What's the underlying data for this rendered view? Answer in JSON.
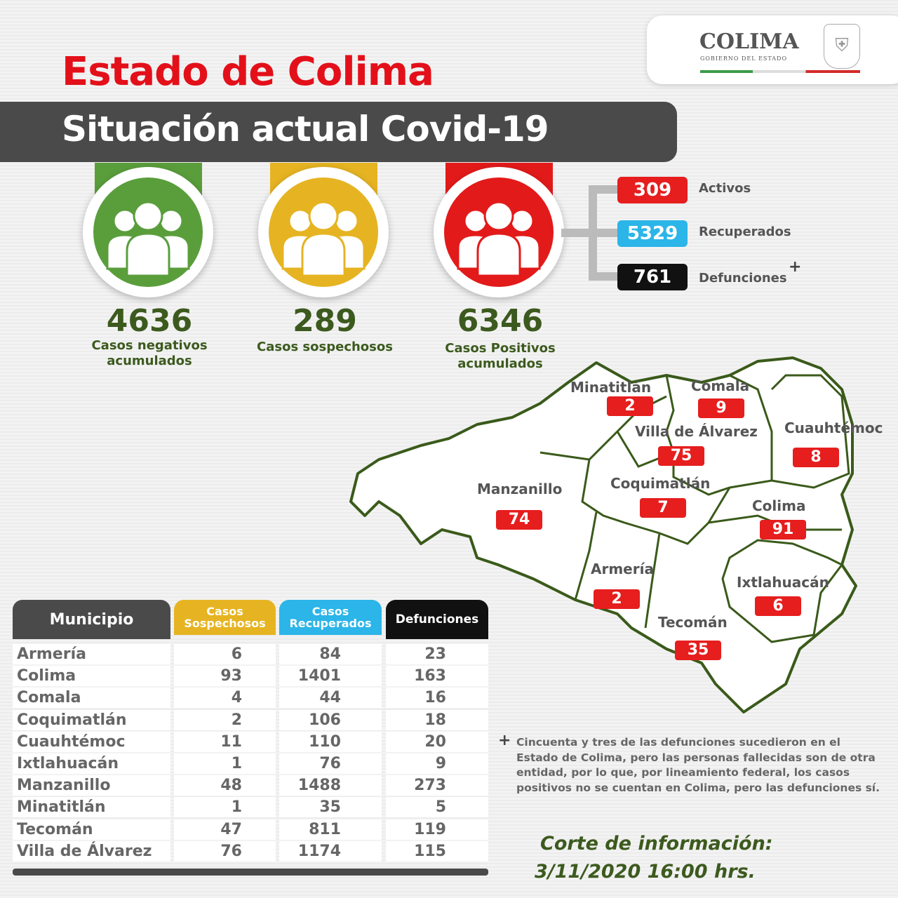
{
  "header": {
    "title": "Estado de Colima",
    "subtitle": "Situación actual Covid-19"
  },
  "logo": {
    "name": "COLIMA",
    "subtitle": "GOBIERNO DEL ESTADO"
  },
  "summary": [
    {
      "value": "4636",
      "label": "Casos negativos acumulados",
      "color": "#5a9e3c"
    },
    {
      "value": "289",
      "label": "Casos sospechosos",
      "color": "#e6b422"
    },
    {
      "value": "6346",
      "label": "Casos Positivos acumulados",
      "color": "#e31a1a"
    }
  ],
  "positive_breakdown": [
    {
      "value": "309",
      "label": "Activos",
      "color": "#e61e1e"
    },
    {
      "value": "5329",
      "label": "Recuperados",
      "color": "#2bb5e8"
    },
    {
      "value": "761",
      "label": "Defunciones",
      "color": "#111111",
      "marker": "+"
    }
  ],
  "map": [
    {
      "name": "Minatitlán",
      "value": "2"
    },
    {
      "name": "Comala",
      "value": "9"
    },
    {
      "name": "Villa de Álvarez",
      "value": "75"
    },
    {
      "name": "Cuauhtémoc",
      "value": "8"
    },
    {
      "name": "Manzanillo",
      "value": "74"
    },
    {
      "name": "Coquimatlán",
      "value": "7"
    },
    {
      "name": "Colima",
      "value": "91"
    },
    {
      "name": "Armería",
      "value": "2"
    },
    {
      "name": "Ixtlahuacán",
      "value": "6"
    },
    {
      "name": "Tecomán",
      "value": "35"
    }
  ],
  "table": {
    "headers": [
      "Municipio",
      "Casos Sospechosos",
      "Casos Recuperados",
      "Defunciones"
    ],
    "header_colors": [
      "#4a4a4a",
      "#e6b422",
      "#2bb5e8",
      "#111111"
    ],
    "rows": [
      [
        "Armería",
        "6",
        "84",
        "23"
      ],
      [
        "Colima",
        "93",
        "1401",
        "163"
      ],
      [
        "Comala",
        "4",
        "44",
        "16"
      ],
      [
        "Coquimatlán",
        "2",
        "106",
        "18"
      ],
      [
        "Cuauhtémoc",
        "11",
        "110",
        "20"
      ],
      [
        "Ixtlahuacán",
        "1",
        "76",
        "9"
      ],
      [
        "Manzanillo",
        "48",
        "1488",
        "273"
      ],
      [
        "Minatitlán",
        "1",
        "35",
        "5"
      ],
      [
        "Tecomán",
        "47",
        "811",
        "119"
      ],
      [
        "Villa de Álvarez",
        "76",
        "1174",
        "115"
      ]
    ]
  },
  "note": {
    "marker": "+",
    "text": "Cincuenta y tres de las defunciones sucedieron en el Estado de Colima, pero las personas fallecidas son de otra entidad, por lo que, por lineamiento federal, los casos positivos no se cuentan en Colima, pero las defunciones sí."
  },
  "cutoff": {
    "label": "Corte de información:",
    "datetime": "3/11/2020 16:00 hrs."
  }
}
